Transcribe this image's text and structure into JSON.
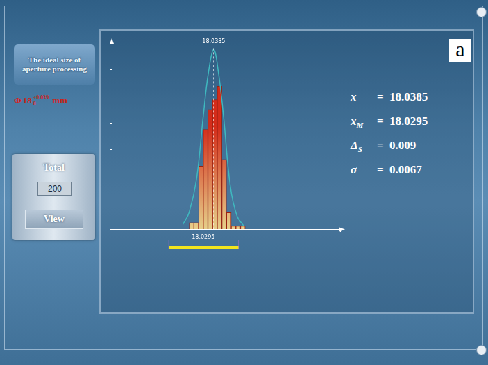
{
  "sidebar": {
    "title": "The ideal size of aperture processing",
    "spec": {
      "symbol": "Φ",
      "nominal": "18",
      "upper": "+0.039",
      "lower": "0",
      "unit": "mm"
    },
    "total_label": "Total",
    "total_value": "200",
    "button": "View"
  },
  "panel_letter": "a",
  "stats": [
    {
      "symbol": "x",
      "separator": "=",
      "value": "18.0385"
    },
    {
      "symbol": "x",
      "subscript": "M",
      "separator": "=",
      "value": "18.0295"
    },
    {
      "symbol": "Δ",
      "subscript": "S",
      "separator": "=",
      "value": "0.009"
    },
    {
      "symbol": "σ",
      "separator": "=",
      "value": "0.0067"
    }
  ],
  "chart_data": {
    "type": "histogram",
    "bins": [
      18.0175,
      18.0215,
      18.0255,
      18.0295,
      18.0335,
      18.0375,
      18.0415,
      18.0455,
      18.0495,
      18.0535,
      18.0575,
      18.0615,
      18.0655
    ],
    "counts": [
      2,
      2,
      19,
      30,
      36,
      39,
      43,
      21,
      5,
      1,
      1,
      1
    ],
    "color": "#d42c1a",
    "curve": {
      "type": "line",
      "color": "#3fb8bf",
      "x": [
        18.0121,
        18.0173,
        18.0237,
        18.0295,
        18.0339,
        18.0385,
        18.0426,
        18.0469,
        18.0527,
        18.0585,
        18.0643
      ],
      "values": [
        1.5,
        5,
        15,
        34,
        47,
        54,
        47,
        34,
        13,
        4,
        1
      ]
    },
    "xlim": [
      18.0,
      18.098
    ],
    "xticks": [
      18.0295
    ],
    "ylim": [
      0,
      56
    ],
    "yticks": [
      0,
      8,
      16,
      24,
      32,
      40,
      48
    ],
    "tick_labels": "x",
    "grid": false,
    "annotations": [
      {
        "x": 18.0385,
        "text": "18.0385",
        "line_style": "dashed"
      }
    ],
    "tolerance_band": {
      "range": [
        18.0,
        18.06
      ],
      "color": "#f2e41c"
    }
  }
}
